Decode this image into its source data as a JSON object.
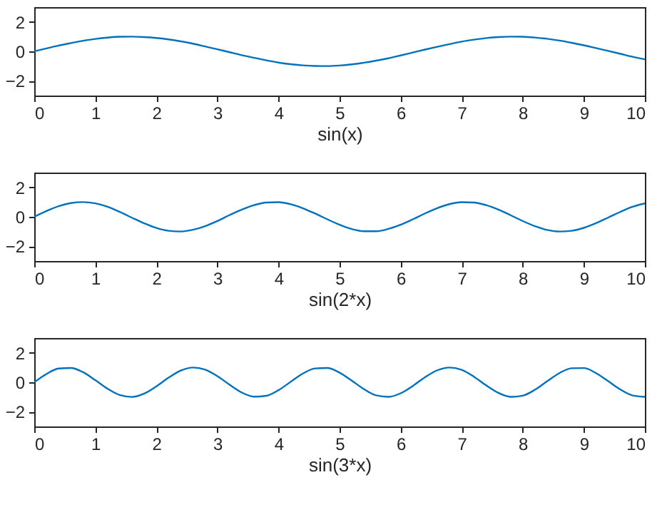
{
  "chart_data": [
    {
      "type": "line",
      "xlabel": "sin(x)",
      "x": [
        0,
        0.2,
        0.4,
        0.6,
        0.8,
        1,
        1.2,
        1.4,
        1.6,
        1.8,
        2,
        2.2,
        2.4,
        2.6,
        2.8,
        3,
        3.2,
        3.4,
        3.6,
        3.8,
        4,
        4.2,
        4.4,
        4.6,
        4.8,
        5,
        5.2,
        5.4,
        5.6,
        5.8,
        6,
        6.2,
        6.4,
        6.6,
        6.8,
        7,
        7.2,
        7.4,
        7.6,
        7.8,
        8,
        8.2,
        8.4,
        8.6,
        8.8,
        9,
        9.2,
        9.4,
        9.6,
        9.8,
        10
      ],
      "series": [
        {
          "color": "#0072bd",
          "values": [
            0,
            0.2,
            0.39,
            0.56,
            0.72,
            0.84,
            0.93,
            0.99,
            1,
            0.97,
            0.91,
            0.81,
            0.68,
            0.52,
            0.33,
            0.14,
            -0.06,
            -0.26,
            -0.44,
            -0.61,
            -0.76,
            -0.87,
            -0.95,
            -0.99,
            -1,
            -0.96,
            -0.88,
            -0.77,
            -0.63,
            -0.47,
            -0.28,
            -0.08,
            0.12,
            0.31,
            0.49,
            0.66,
            0.79,
            0.9,
            0.97,
            1,
            0.99,
            0.94,
            0.85,
            0.73,
            0.58,
            0.41,
            0.22,
            0.03,
            -0.17,
            -0.37,
            -0.54
          ]
        }
      ],
      "xlim": [
        0,
        10
      ],
      "xticks": [
        0,
        1,
        2,
        3,
        4,
        5,
        6,
        7,
        8,
        9,
        10
      ],
      "ylim": [
        -3,
        3
      ],
      "yticks": [
        -2,
        0,
        2
      ],
      "grid": false,
      "legend": false,
      "marker": "none",
      "line_style": "solid"
    },
    {
      "type": "line",
      "xlabel": "sin(2*x)",
      "x": [
        0,
        0.2,
        0.4,
        0.6,
        0.8,
        1,
        1.2,
        1.4,
        1.6,
        1.8,
        2,
        2.2,
        2.4,
        2.6,
        2.8,
        3,
        3.2,
        3.4,
        3.6,
        3.8,
        4,
        4.2,
        4.4,
        4.6,
        4.8,
        5,
        5.2,
        5.4,
        5.6,
        5.8,
        6,
        6.2,
        6.4,
        6.6,
        6.8,
        7,
        7.2,
        7.4,
        7.6,
        7.8,
        8,
        8.2,
        8.4,
        8.6,
        8.8,
        9,
        9.2,
        9.4,
        9.6,
        9.8,
        10
      ],
      "series": [
        {
          "color": "#0072bd",
          "values": [
            0,
            0.39,
            0.72,
            0.93,
            1,
            0.91,
            0.68,
            0.33,
            -0.06,
            -0.44,
            -0.76,
            -0.95,
            -1,
            -0.88,
            -0.63,
            -0.28,
            0.12,
            0.49,
            0.79,
            0.97,
            0.99,
            0.85,
            0.58,
            0.22,
            -0.17,
            -0.54,
            -0.83,
            -0.98,
            -0.98,
            -0.82,
            -0.54,
            -0.17,
            0.23,
            0.59,
            0.86,
            0.99,
            0.97,
            0.79,
            0.49,
            0.11,
            -0.29,
            -0.64,
            -0.89,
            -1,
            -0.95,
            -0.75,
            -0.43,
            -0.05,
            0.34,
            0.68,
            0.91
          ]
        }
      ],
      "xlim": [
        0,
        10
      ],
      "xticks": [
        0,
        1,
        2,
        3,
        4,
        5,
        6,
        7,
        8,
        9,
        10
      ],
      "ylim": [
        -3,
        3
      ],
      "yticks": [
        -2,
        0,
        2
      ],
      "grid": false,
      "legend": false,
      "marker": "none",
      "line_style": "solid"
    },
    {
      "type": "line",
      "xlabel": "sin(3*x)",
      "x": [
        0,
        0.2,
        0.4,
        0.6,
        0.8,
        1,
        1.2,
        1.4,
        1.6,
        1.8,
        2,
        2.2,
        2.4,
        2.6,
        2.8,
        3,
        3.2,
        3.4,
        3.6,
        3.8,
        4,
        4.2,
        4.4,
        4.6,
        4.8,
        5,
        5.2,
        5.4,
        5.6,
        5.8,
        6,
        6.2,
        6.4,
        6.6,
        6.8,
        7,
        7.2,
        7.4,
        7.6,
        7.8,
        8,
        8.2,
        8.4,
        8.6,
        8.8,
        9,
        9.2,
        9.4,
        9.6,
        9.8,
        10
      ],
      "series": [
        {
          "color": "#0072bd",
          "values": [
            0,
            0.56,
            0.93,
            0.97,
            0.68,
            0.14,
            -0.44,
            -0.87,
            -1,
            -0.77,
            -0.28,
            0.31,
            0.79,
            1,
            0.85,
            0.41,
            -0.17,
            -0.7,
            -0.98,
            -0.92,
            -0.54,
            0.03,
            0.59,
            0.94,
            0.97,
            0.65,
            0.11,
            -0.47,
            -0.89,
            -0.99,
            -0.75,
            -0.25,
            0.34,
            0.81,
            1,
            0.84,
            0.38,
            -0.21,
            -0.72,
            -0.99,
            -0.91,
            -0.51,
            0.07,
            0.62,
            0.95,
            0.96,
            0.62,
            0.07,
            -0.5,
            -0.9,
            -0.99
          ]
        }
      ],
      "xlim": [
        0,
        10
      ],
      "xticks": [
        0,
        1,
        2,
        3,
        4,
        5,
        6,
        7,
        8,
        9,
        10
      ],
      "ylim": [
        -3,
        3
      ],
      "yticks": [
        -2,
        0,
        2
      ],
      "grid": false,
      "legend": false,
      "marker": "none",
      "line_style": "solid"
    }
  ]
}
